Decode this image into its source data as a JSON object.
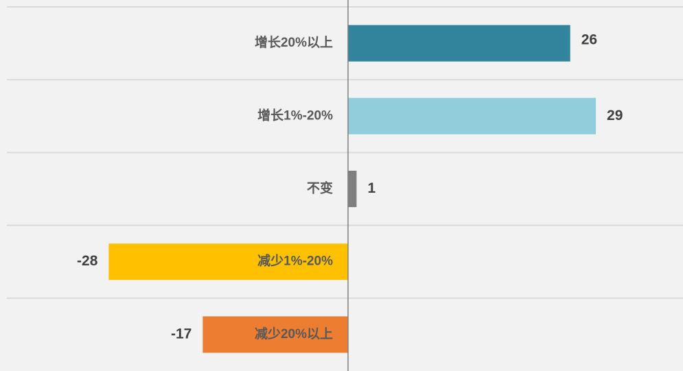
{
  "chart_data": {
    "type": "bar",
    "orientation": "horizontal",
    "categories": [
      "增长20%以上",
      "增长1%-20%",
      "不变",
      "减少1%-20%",
      "减少20%以上"
    ],
    "values": [
      26,
      29,
      1,
      -28,
      -17
    ],
    "colors": [
      "#31849b",
      "#92cddc",
      "#7f7f7f",
      "#ffc000",
      "#ed7d31"
    ],
    "grid": true
  }
}
